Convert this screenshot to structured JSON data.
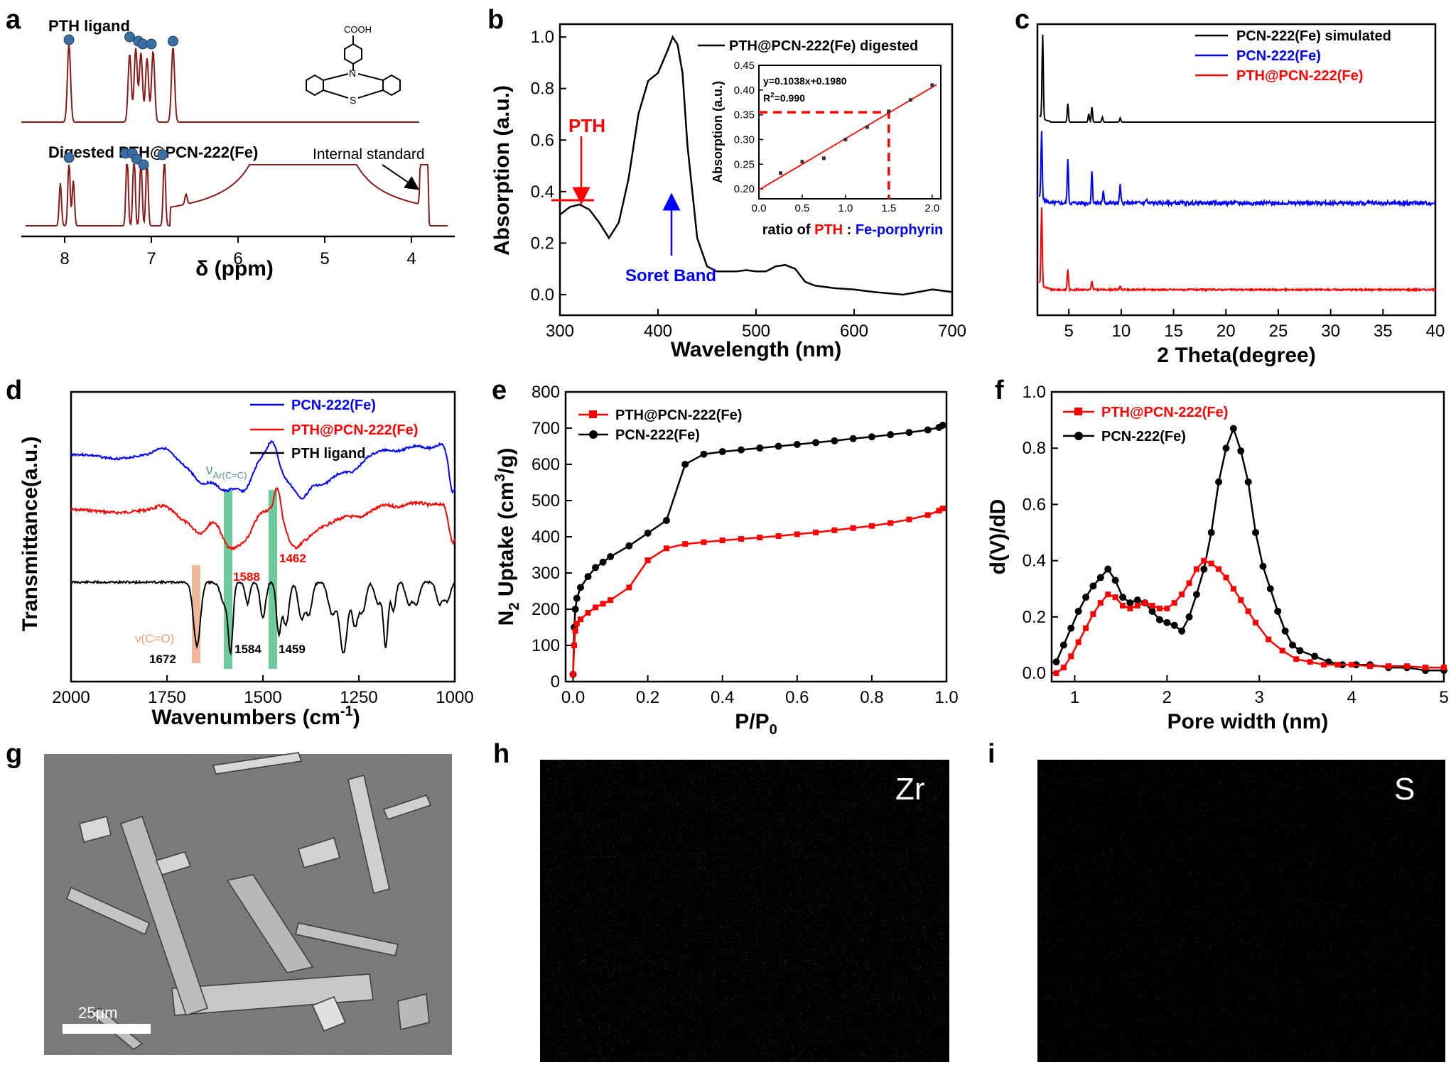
{
  "panels": {
    "a": {
      "letter": "a",
      "top_label": "PTH ligand",
      "bottom_label": "Digested PTH@PCN-222(Fe)",
      "annotation": "Internal standard",
      "molecule_label": "COOH",
      "molecule_n": "N",
      "molecule_s": "S",
      "xlabel": "δ (ppm)",
      "xticks": [
        "8",
        "7",
        "6",
        "5",
        "4"
      ]
    },
    "b": {
      "letter": "b",
      "legend": "PTH@PCN-222(Fe) digested",
      "xlabel": "Wavelength (nm)",
      "ylabel": "Absorption (a.u.)",
      "xticks": [
        "300",
        "400",
        "500",
        "600",
        "700"
      ],
      "yticks": [
        "0.0",
        "0.2",
        "0.4",
        "0.6",
        "0.8",
        "1.0"
      ],
      "label_pth": "PTH",
      "label_soret": "Soret Band",
      "inset": {
        "equation": "y=0.1038x+0.1980",
        "r2_prefix": "R",
        "r2_sup": "2",
        "r2_value": "=0.990",
        "ylabel": "Absorption (a.u.)",
        "xlabel_a": "ratio of ",
        "xlabel_b": "PTH",
        "xlabel_c": " : ",
        "xlabel_d": "Fe-porphyrin",
        "xticks": [
          "0.0",
          "0.5",
          "1.0",
          "1.5",
          "2.0"
        ],
        "yticks": [
          "0.20",
          "0.25",
          "0.30",
          "0.35",
          "0.40",
          "0.45"
        ]
      }
    },
    "c": {
      "letter": "c",
      "legend": [
        "PCN-222(Fe) simulated",
        "PCN-222(Fe)",
        "PTH@PCN-222(Fe)"
      ],
      "xlabel": "2 Theta(degree)",
      "xticks": [
        "5",
        "10",
        "15",
        "20",
        "25",
        "30",
        "35",
        "40"
      ]
    },
    "d": {
      "letter": "d",
      "legend": [
        "PCN-222(Fe)",
        "PTH@PCN-222(Fe)",
        "PTH ligand"
      ],
      "xlabel": "Wavenumbers (cm",
      "xlabel_sup": "-1",
      "xlabel_end": ")",
      "ylabel": "Transmittance(a.u.)",
      "xticks": [
        "2000",
        "1750",
        "1500",
        "1250",
        "1000"
      ],
      "nu_ar": "ν",
      "nu_ar_sub": "Ar(C=C)",
      "nu_co": "ν(C=O)",
      "peaks": [
        "1588",
        "1462",
        "1672",
        "1584",
        "1459"
      ]
    },
    "e": {
      "letter": "e",
      "legend": [
        "PTH@PCN-222(Fe)",
        "PCN-222(Fe)"
      ],
      "xlabel": "P/P",
      "xlabel_sub": "0",
      "ylabel_a": "N",
      "ylabel_sub": "2",
      "ylabel_b": " Uptake (cm",
      "ylabel_sup": "3",
      "ylabel_c": "/g)",
      "xticks": [
        "0.0",
        "0.2",
        "0.4",
        "0.6",
        "0.8",
        "1.0"
      ],
      "yticks": [
        "0",
        "100",
        "200",
        "300",
        "400",
        "500",
        "600",
        "700",
        "800"
      ]
    },
    "f": {
      "letter": "f",
      "legend": [
        "PTH@PCN-222(Fe)",
        "PCN-222(Fe)"
      ],
      "xlabel": "Pore width (nm)",
      "ylabel": "d(V)/dD",
      "xticks": [
        "1",
        "2",
        "3",
        "4",
        "5"
      ],
      "yticks": [
        "0.0",
        "0.2",
        "0.4",
        "0.6",
        "0.8",
        "1.0"
      ]
    },
    "g": {
      "letter": "g",
      "scale": "25μm"
    },
    "h": {
      "letter": "h",
      "element": "Zr"
    },
    "i": {
      "letter": "i",
      "element": "S"
    }
  },
  "colors": {
    "black": "#000000",
    "red": "#ff0000",
    "blue": "#0000ff",
    "dark_red": "#8b1a1a",
    "nmr_dot": "#3a6ea5",
    "green_bar": "#3cb878",
    "orange_bar": "#e8a07a",
    "zr": "#1aa51a",
    "s": "#cc1a1a"
  },
  "chart_data": [
    {
      "panel": "b",
      "type": "line",
      "xlabel": "Wavelength (nm)",
      "ylabel": "Absorption (a.u.)",
      "xlim": [
        300,
        700
      ],
      "ylim": [
        -0.08,
        1.05
      ],
      "series": [
        {
          "name": "PTH@PCN-222(Fe) digested",
          "x": [
            300,
            310,
            320,
            330,
            340,
            350,
            360,
            370,
            380,
            390,
            400,
            410,
            415,
            420,
            425,
            430,
            440,
            450,
            460,
            470,
            480,
            490,
            500,
            510,
            520,
            530,
            540,
            550,
            560,
            580,
            600,
            620,
            650,
            680,
            700
          ],
          "y": [
            0.31,
            0.34,
            0.35,
            0.33,
            0.28,
            0.22,
            0.28,
            0.45,
            0.7,
            0.83,
            0.86,
            0.95,
            1.0,
            0.97,
            0.86,
            0.58,
            0.22,
            0.11,
            0.09,
            0.09,
            0.09,
            0.095,
            0.09,
            0.09,
            0.11,
            0.115,
            0.1,
            0.05,
            0.035,
            0.025,
            0.02,
            0.01,
            0.0,
            0.02,
            0.01
          ]
        }
      ]
    },
    {
      "panel": "b-inset",
      "type": "scatter",
      "xlabel": "ratio of PTH : Fe-porphyrin",
      "ylabel": "Absorption (a.u.)",
      "xlim": [
        0,
        2.1
      ],
      "ylim": [
        0.18,
        0.45
      ],
      "series": [
        {
          "name": "",
          "x": [
            0.25,
            0.5,
            0.75,
            1.0,
            1.25,
            1.5,
            1.75,
            2.0
          ],
          "y": [
            0.232,
            0.255,
            0.262,
            0.3,
            0.325,
            0.357,
            0.38,
            0.41
          ]
        }
      ],
      "fit": {
        "slope": 0.1038,
        "intercept": 0.198,
        "r2": 0.99
      }
    },
    {
      "panel": "c",
      "type": "line",
      "xlabel": "2 Theta(degree)",
      "xlim": [
        2,
        40
      ],
      "series": [
        {
          "name": "PCN-222(Fe) simulated",
          "peaks": [
            [
              2.5,
              1.0
            ],
            [
              4.9,
              0.22
            ],
            [
              6.9,
              0.1
            ],
            [
              7.2,
              0.18
            ],
            [
              8.2,
              0.06
            ],
            [
              9.9,
              0.05
            ]
          ]
        },
        {
          "name": "PCN-222(Fe)",
          "peaks": [
            [
              2.4,
              0.85
            ],
            [
              4.9,
              0.55
            ],
            [
              7.2,
              0.4
            ],
            [
              8.3,
              0.15
            ],
            [
              9.9,
              0.22
            ],
            [
              12.4,
              0.05
            ]
          ]
        },
        {
          "name": "PTH@PCN-222(Fe)",
          "peaks": [
            [
              2.4,
              0.95
            ],
            [
              4.9,
              0.25
            ],
            [
              7.2,
              0.1
            ],
            [
              9.9,
              0.05
            ]
          ]
        }
      ]
    },
    {
      "panel": "d",
      "type": "line",
      "xlabel": "Wavenumbers (cm-1)",
      "ylabel": "Transmittance(a.u.)",
      "xlim": [
        2000,
        1000
      ],
      "series": [
        {
          "name": "PCN-222(Fe)"
        },
        {
          "name": "PTH@PCN-222(Fe)"
        },
        {
          "name": "PTH ligand"
        }
      ],
      "annotations": [
        "1588",
        "1462",
        "1672",
        "1584",
        "1459"
      ]
    },
    {
      "panel": "e",
      "type": "line",
      "xlabel": "P/P0",
      "ylabel": "N2 Uptake (cm3/g)",
      "xlim": [
        -0.02,
        1.0
      ],
      "ylim": [
        0,
        800
      ],
      "series": [
        {
          "name": "PTH@PCN-222(Fe)",
          "x": [
            0.0,
            0.003,
            0.006,
            0.01,
            0.02,
            0.04,
            0.06,
            0.08,
            0.1,
            0.15,
            0.2,
            0.25,
            0.3,
            0.35,
            0.4,
            0.45,
            0.5,
            0.55,
            0.6,
            0.65,
            0.7,
            0.75,
            0.8,
            0.85,
            0.9,
            0.95,
            0.98,
            0.99
          ],
          "y": [
            20,
            100,
            140,
            160,
            172,
            190,
            205,
            215,
            225,
            260,
            335,
            368,
            380,
            385,
            390,
            394,
            398,
            402,
            407,
            412,
            418,
            424,
            430,
            438,
            448,
            460,
            472,
            478
          ]
        },
        {
          "name": "PCN-222(Fe)",
          "x": [
            0.0,
            0.003,
            0.006,
            0.01,
            0.02,
            0.04,
            0.06,
            0.08,
            0.1,
            0.15,
            0.2,
            0.25,
            0.3,
            0.35,
            0.4,
            0.45,
            0.5,
            0.55,
            0.6,
            0.65,
            0.7,
            0.75,
            0.8,
            0.85,
            0.9,
            0.95,
            0.98,
            0.99
          ],
          "y": [
            20,
            150,
            200,
            230,
            260,
            290,
            315,
            330,
            345,
            375,
            410,
            445,
            600,
            628,
            635,
            640,
            645,
            650,
            655,
            660,
            665,
            671,
            676,
            682,
            688,
            695,
            702,
            708
          ]
        }
      ]
    },
    {
      "panel": "f",
      "type": "line",
      "xlabel": "Pore width (nm)",
      "ylabel": "d(V)/dD",
      "xlim": [
        0.75,
        5.0
      ],
      "ylim": [
        -0.03,
        1.0
      ],
      "series": [
        {
          "name": "PTH@PCN-222(Fe)",
          "x": [
            0.8,
            0.88,
            0.96,
            1.04,
            1.12,
            1.2,
            1.28,
            1.36,
            1.44,
            1.52,
            1.6,
            1.68,
            1.76,
            1.84,
            1.92,
            2.0,
            2.08,
            2.16,
            2.24,
            2.32,
            2.4,
            2.48,
            2.56,
            2.64,
            2.72,
            2.8,
            2.88,
            2.96,
            3.1,
            3.25,
            3.4,
            3.55,
            3.7,
            3.85,
            4.0,
            4.2,
            4.4,
            4.6,
            4.8,
            5.0
          ],
          "y": [
            0.0,
            0.02,
            0.06,
            0.11,
            0.16,
            0.21,
            0.25,
            0.28,
            0.27,
            0.24,
            0.23,
            0.24,
            0.25,
            0.24,
            0.23,
            0.23,
            0.25,
            0.28,
            0.32,
            0.37,
            0.4,
            0.39,
            0.37,
            0.34,
            0.3,
            0.26,
            0.22,
            0.18,
            0.12,
            0.08,
            0.05,
            0.04,
            0.03,
            0.03,
            0.03,
            0.025,
            0.025,
            0.025,
            0.02,
            0.02
          ]
        },
        {
          "name": "PCN-222(Fe)",
          "x": [
            0.8,
            0.88,
            0.96,
            1.04,
            1.12,
            1.2,
            1.28,
            1.36,
            1.44,
            1.52,
            1.6,
            1.68,
            1.76,
            1.84,
            1.92,
            2.0,
            2.08,
            2.16,
            2.24,
            2.32,
            2.4,
            2.48,
            2.56,
            2.64,
            2.72,
            2.8,
            2.88,
            2.96,
            3.04,
            3.12,
            3.2,
            3.28,
            3.36,
            3.44,
            3.6,
            3.75,
            3.9,
            4.05,
            4.2,
            4.4,
            4.6,
            4.8,
            5.0
          ],
          "y": [
            0.04,
            0.1,
            0.16,
            0.22,
            0.27,
            0.31,
            0.34,
            0.37,
            0.33,
            0.27,
            0.25,
            0.26,
            0.25,
            0.22,
            0.19,
            0.18,
            0.17,
            0.15,
            0.2,
            0.28,
            0.37,
            0.5,
            0.68,
            0.8,
            0.87,
            0.79,
            0.68,
            0.5,
            0.38,
            0.3,
            0.22,
            0.15,
            0.1,
            0.08,
            0.06,
            0.04,
            0.03,
            0.03,
            0.03,
            0.02,
            0.02,
            0.01,
            0.01
          ]
        }
      ]
    }
  ]
}
